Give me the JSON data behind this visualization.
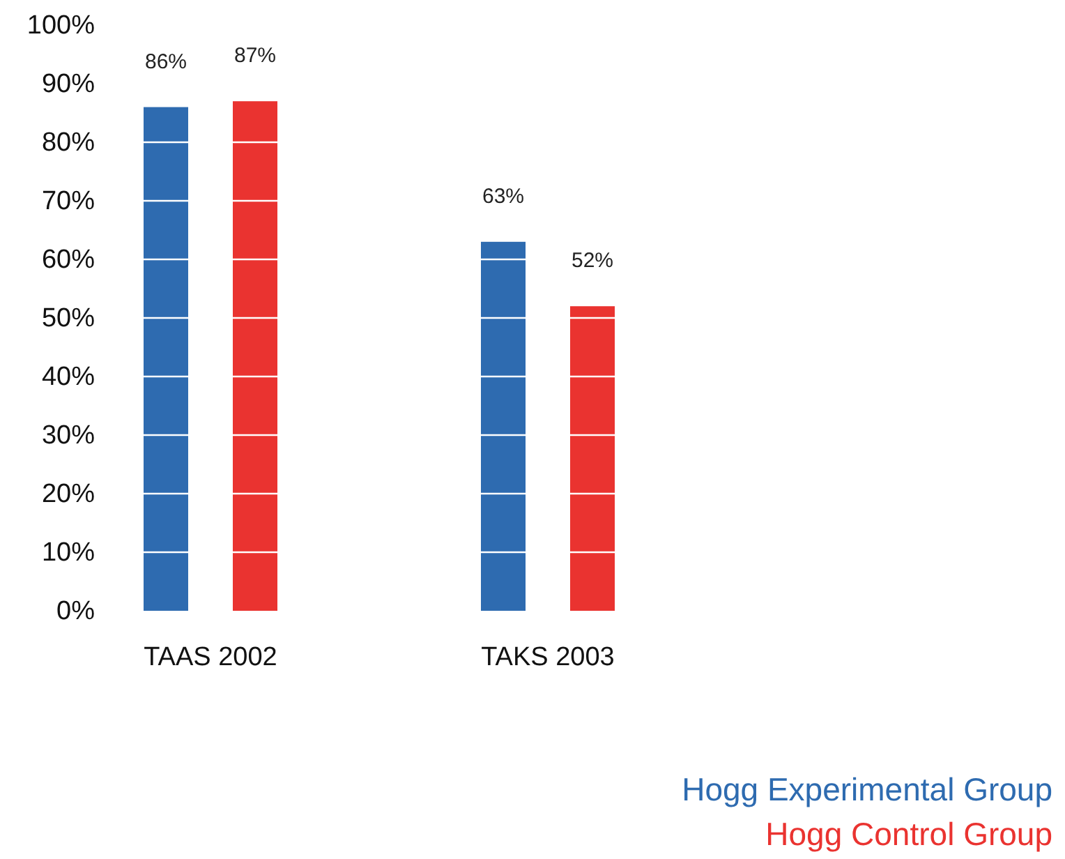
{
  "chart_data": {
    "type": "bar",
    "categories": [
      "TAAS 2002",
      "TAKS 2003"
    ],
    "series": [
      {
        "name": "Hogg Experimental Group",
        "color": "#2e6bb0",
        "values": [
          86,
          63
        ]
      },
      {
        "name": "Hogg Control Group",
        "color": "#ea3330",
        "values": [
          87,
          52
        ]
      }
    ],
    "ylim": [
      0,
      100
    ],
    "yticks": [
      {
        "value": 0,
        "label": "0%"
      },
      {
        "value": 10,
        "label": "10%"
      },
      {
        "value": 20,
        "label": "20%"
      },
      {
        "value": 30,
        "label": "30%"
      },
      {
        "value": 40,
        "label": "40%"
      },
      {
        "value": 50,
        "label": "50%"
      },
      {
        "value": 60,
        "label": "60%"
      },
      {
        "value": 70,
        "label": "70%"
      },
      {
        "value": 80,
        "label": "80%"
      },
      {
        "value": 90,
        "label": "90%"
      },
      {
        "value": 100,
        "label": "100%"
      }
    ],
    "grid": "y",
    "value_labels": [
      [
        "86%",
        "63%"
      ],
      [
        "87%",
        "52%"
      ]
    ],
    "legend": "bottom right"
  }
}
